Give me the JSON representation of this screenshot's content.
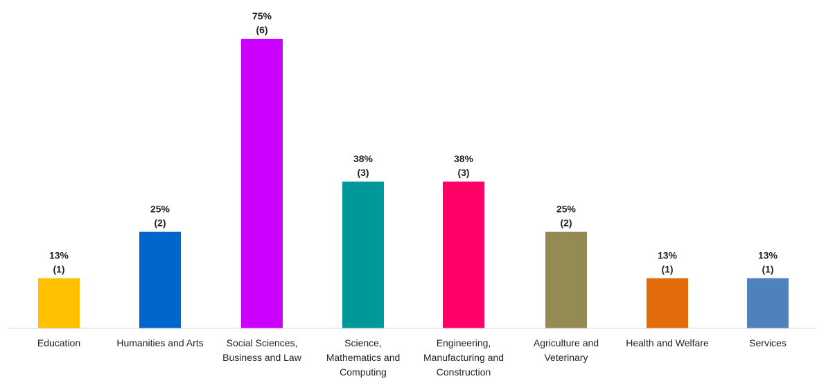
{
  "chart_data": {
    "type": "bar",
    "title": "",
    "xlabel": "",
    "ylabel": "",
    "ylim": [
      0,
      75
    ],
    "grid": false,
    "legend": "none",
    "categories": [
      "Education",
      "Humanities and Arts",
      "Social Sciences, Business and Law",
      "Science, Mathematics and Computing",
      "Engineering, Manufacturing and Construction",
      "Agriculture and Veterinary",
      "Health and Welfare",
      "Services"
    ],
    "category_lines": [
      [
        "Education"
      ],
      [
        "Humanities and Arts"
      ],
      [
        "Social Sciences,",
        "Business and Law"
      ],
      [
        "Science,",
        "Mathematics and",
        "Computing"
      ],
      [
        "Engineering,",
        "Manufacturing and",
        "Construction"
      ],
      [
        "Agriculture and",
        "Veterinary"
      ],
      [
        "Health and Welfare"
      ],
      [
        "Services"
      ]
    ],
    "values": [
      13,
      25,
      75,
      38,
      38,
      25,
      13,
      13
    ],
    "value_labels": [
      "13%",
      "25%",
      "75%",
      "38%",
      "38%",
      "25%",
      "13%",
      "13%"
    ],
    "counts": [
      1,
      2,
      6,
      3,
      3,
      2,
      1,
      1
    ],
    "count_labels": [
      "(1)",
      "(2)",
      "(6)",
      "(3)",
      "(3)",
      "(2)",
      "(1)",
      "(1)"
    ],
    "colors": [
      "#FFC000",
      "#0066CC",
      "#CC00FF",
      "#009999",
      "#FF0066",
      "#948A54",
      "#E36C0A",
      "#4F81BD"
    ]
  }
}
